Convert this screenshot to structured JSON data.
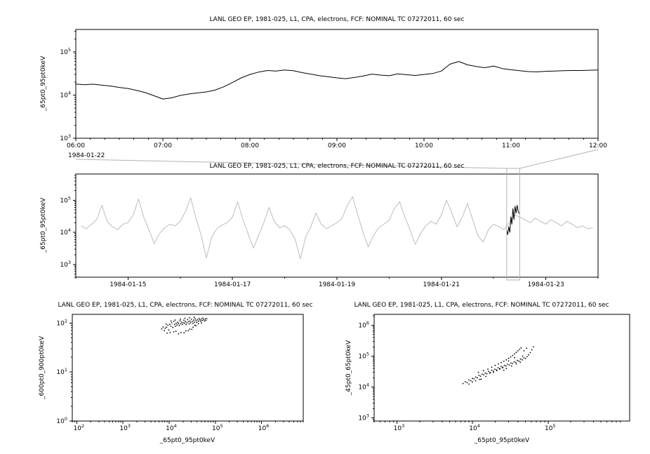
{
  "window": {
    "background": "#ffffff"
  },
  "colors": {
    "axis": "#000000",
    "series": "#000000",
    "context_line": "#bdbdbd",
    "highlight": "#000000",
    "selection": "#b3b3b3"
  },
  "chart_data": [
    {
      "type": "line",
      "title": "LANL GEO EP, 1981-025, L1, CPA, electrons, FCF: NOMINAL TC 07272011, 60 sec",
      "ylabel": "_65pt0_95pt0keV",
      "x_context_label": "1984-01-22",
      "x_unit": "time of day (hours)",
      "xlim": [
        6,
        12
      ],
      "ylim": [
        1000,
        330000
      ],
      "y_scale": "log",
      "x_minor_step": 0.1666667,
      "x_ticks": [
        {
          "v": 6,
          "label": "06:00"
        },
        {
          "v": 7,
          "label": "07:00"
        },
        {
          "v": 8,
          "label": "08:00"
        },
        {
          "v": 9,
          "label": "09:00"
        },
        {
          "v": 10,
          "label": "10:00"
        },
        {
          "v": 11,
          "label": "11:00"
        },
        {
          "v": 12,
          "label": "12:00"
        }
      ],
      "y_decades": [
        3,
        4,
        5
      ],
      "series": [
        {
          "name": "flux-65-95keV",
          "color": "#000000",
          "x": {
            "start": 6.0,
            "step": 0.1
          },
          "y": [
            18000,
            17400,
            17800,
            16900,
            16200,
            15000,
            14200,
            12800,
            11400,
            9600,
            8100,
            8600,
            9800,
            10600,
            11200,
            11800,
            13000,
            15500,
            19500,
            25000,
            30000,
            34000,
            37000,
            36000,
            38000,
            36500,
            33000,
            30500,
            28000,
            26500,
            25000,
            24000,
            25500,
            27500,
            30500,
            29000,
            28000,
            31000,
            29500,
            28500,
            30000,
            31500,
            36000,
            52000,
            60000,
            50000,
            46000,
            43000,
            47000,
            41000,
            38500,
            36500,
            35000,
            34500,
            35500,
            36000,
            36500,
            37000,
            37000,
            37500,
            38000
          ]
        }
      ]
    },
    {
      "type": "line",
      "title": "LANL GEO EP, 1981-025, L1, CPA, electrons, FCF: NOMINAL TC 07272011, 60 sec",
      "ylabel": "_65pt0_95pt0keV",
      "x_unit": "day of 1984-01",
      "xlim": [
        14,
        24
      ],
      "ylim": [
        400,
        660000
      ],
      "y_scale": "log",
      "x_minor_step": 1,
      "x_ticks": [
        {
          "v": 15,
          "label": "1984-01-15"
        },
        {
          "v": 17,
          "label": "1984-01-17"
        },
        {
          "v": 19,
          "label": "1984-01-19"
        },
        {
          "v": 21,
          "label": "1984-01-21"
        },
        {
          "v": 23,
          "label": "1984-01-23"
        }
      ],
      "y_decades": [
        3,
        4,
        5
      ],
      "selection": {
        "x0": 22.25,
        "x1": 22.5
      },
      "series": [
        {
          "name": "context-flux-65-95keV",
          "color": "#bdbdbd",
          "x": {
            "start": 14.1,
            "step": 0.1
          },
          "y": [
            16000,
            13000,
            18000,
            25000,
            70000,
            22000,
            15000,
            12000,
            18000,
            20000,
            35000,
            110000,
            30000,
            12000,
            4500,
            9000,
            14000,
            18000,
            16000,
            22000,
            45000,
            120000,
            28000,
            8000,
            1600,
            7000,
            13000,
            17000,
            20000,
            30000,
            90000,
            25000,
            9000,
            3200,
            8000,
            20000,
            60000,
            22000,
            14000,
            16000,
            12000,
            6000,
            1500,
            7000,
            15000,
            40000,
            18000,
            13000,
            16000,
            20000,
            28000,
            70000,
            130000,
            35000,
            10000,
            3500,
            8000,
            14000,
            18000,
            24000,
            55000,
            90000,
            30000,
            12000,
            4200,
            9000,
            16000,
            22000,
            18000,
            35000,
            100000,
            40000,
            15000,
            30000,
            80000,
            25000,
            8000,
            5000,
            12000,
            18000,
            15000,
            12000,
            20000,
            35000,
            30000,
            25000,
            20000,
            28000,
            22000,
            18000,
            25000,
            20000,
            16000,
            22000,
            18000,
            14000,
            16000,
            13000,
            14000
          ]
        },
        {
          "name": "highlight-zoom-interval",
          "color": "#000000",
          "x": {
            "start": 22.25,
            "step": 0.02
          },
          "y": [
            12000,
            8500,
            15000,
            10000,
            30000,
            18000,
            55000,
            25000,
            65000,
            40000,
            70000,
            45000,
            38000
          ]
        }
      ]
    },
    {
      "type": "scatter",
      "title": "LANL GEO EP, 1981-025, L1, CPA, electrons, FCF: NOMINAL TC 07272011, 60 sec",
      "xlabel": "_65pt0_95pt0keV",
      "ylabel": "_600pt0_900pt0keV",
      "x_log": true,
      "xlim": [
        80,
        8000000
      ],
      "ylim": [
        1,
        150
      ],
      "x_decades": [
        2,
        3,
        4,
        5,
        6
      ],
      "y_decades": [
        0,
        1,
        2
      ],
      "points": [
        [
          8200,
          78
        ],
        [
          8800,
          82
        ],
        [
          9400,
          90
        ],
        [
          9800,
          72
        ],
        [
          10300,
          94
        ],
        [
          10900,
          86
        ],
        [
          11400,
          101
        ],
        [
          12000,
          81
        ],
        [
          12600,
          108
        ],
        [
          13100,
          94
        ],
        [
          13700,
          86
        ],
        [
          14200,
          99
        ],
        [
          14800,
          91
        ],
        [
          15400,
          104
        ],
        [
          16000,
          97
        ],
        [
          16600,
          89
        ],
        [
          17200,
          111
        ],
        [
          17900,
          96
        ],
        [
          18600,
          104
        ],
        [
          19300,
          93
        ],
        [
          20000,
          101
        ],
        [
          20800,
          114
        ],
        [
          21600,
          99
        ],
        [
          22400,
          107
        ],
        [
          23300,
          93
        ],
        [
          24200,
          101
        ],
        [
          25100,
          117
        ],
        [
          26100,
          106
        ],
        [
          27100,
          96
        ],
        [
          28200,
          109
        ],
        [
          29300,
          101
        ],
        [
          30400,
          119
        ],
        [
          31600,
          107
        ],
        [
          32800,
          98
        ],
        [
          34100,
          114
        ],
        [
          35400,
          104
        ],
        [
          36800,
          121
        ],
        [
          38200,
          111
        ],
        [
          39700,
          102
        ],
        [
          41200,
          117
        ],
        [
          42800,
          109
        ],
        [
          44500,
          124
        ],
        [
          46200,
          116
        ],
        [
          48000,
          109
        ],
        [
          49900,
          121
        ],
        [
          51800,
          113
        ],
        [
          53800,
          126
        ],
        [
          55900,
          117
        ],
        [
          58100,
          110
        ],
        [
          60400,
          121
        ],
        [
          62700,
          113
        ],
        [
          65200,
          123
        ],
        [
          9000,
          62
        ],
        [
          12500,
          66
        ],
        [
          16000,
          60
        ],
        [
          21000,
          63
        ],
        [
          26000,
          70
        ],
        [
          31000,
          74
        ],
        [
          6900,
          76
        ],
        [
          7400,
          83
        ],
        [
          7900,
          70
        ],
        [
          10500,
          64
        ],
        [
          14000,
          68
        ],
        [
          18000,
          64
        ],
        [
          23000,
          69
        ],
        [
          28000,
          75
        ],
        [
          36000,
          90
        ],
        [
          43000,
          96
        ],
        [
          50000,
          100
        ],
        [
          33000,
          82
        ],
        [
          38000,
          88
        ],
        [
          8600,
          95
        ],
        [
          11000,
          110
        ],
        [
          13500,
          115
        ],
        [
          17500,
          120
        ],
        [
          22000,
          125
        ],
        [
          27500,
          128
        ],
        [
          35000,
          130
        ]
      ]
    },
    {
      "type": "scatter",
      "title": "LANL GEO EP, 1981-025, L1, CPA, electrons, FCF: NOMINAL TC 07272011, 60 sec",
      "xlabel": "_65pt0_95pt0keV",
      "ylabel": "_45pt0_65pt0keV",
      "x_log": true,
      "xlim": [
        500,
        1200000
      ],
      "ylim": [
        800,
        2240000
      ],
      "x_decades": [
        3,
        4,
        5
      ],
      "y_decades": [
        3,
        4,
        5,
        6
      ],
      "points": [
        [
          7500,
          13000
        ],
        [
          8000,
          15000
        ],
        [
          8500,
          14000
        ],
        [
          9000,
          17000
        ],
        [
          9500,
          16000
        ],
        [
          10000,
          19000
        ],
        [
          10500,
          18500
        ],
        [
          11000,
          21000
        ],
        [
          11600,
          20000
        ],
        [
          12200,
          24000
        ],
        [
          12800,
          22500
        ],
        [
          13400,
          26000
        ],
        [
          14100,
          25000
        ],
        [
          14800,
          28500
        ],
        [
          15500,
          27000
        ],
        [
          16300,
          32000
        ],
        [
          17100,
          30000
        ],
        [
          18000,
          35000
        ],
        [
          18900,
          33000
        ],
        [
          19800,
          38000
        ],
        [
          20800,
          36000
        ],
        [
          21800,
          42000
        ],
        [
          22900,
          40000
        ],
        [
          24000,
          46000
        ],
        [
          25200,
          44000
        ],
        [
          26500,
          50000
        ],
        [
          27800,
          48000
        ],
        [
          29200,
          55000
        ],
        [
          30700,
          52000
        ],
        [
          32200,
          60000
        ],
        [
          33800,
          58000
        ],
        [
          35500,
          66000
        ],
        [
          37300,
          63000
        ],
        [
          39200,
          72000
        ],
        [
          41200,
          69000
        ],
        [
          43300,
          80000
        ],
        [
          45500,
          76000
        ],
        [
          47800,
          88000
        ],
        [
          50200,
          84000
        ],
        [
          52700,
          96000
        ],
        [
          55300,
          110000
        ],
        [
          58100,
          130000
        ],
        [
          61000,
          160000
        ],
        [
          64000,
          200000
        ],
        [
          9000,
          12500
        ],
        [
          11000,
          16000
        ],
        [
          13000,
          18000
        ],
        [
          15000,
          22000
        ],
        [
          17000,
          28000
        ],
        [
          19000,
          30000
        ],
        [
          21000,
          34000
        ],
        [
          23000,
          38000
        ],
        [
          25000,
          42000
        ],
        [
          12000,
          30000
        ],
        [
          14000,
          34000
        ],
        [
          16000,
          38000
        ],
        [
          18000,
          44000
        ],
        [
          20000,
          50000
        ],
        [
          22000,
          56000
        ],
        [
          24000,
          62000
        ],
        [
          26000,
          68000
        ],
        [
          28000,
          76000
        ],
        [
          30000,
          85000
        ],
        [
          32000,
          95000
        ],
        [
          34000,
          105000
        ],
        [
          36000,
          118000
        ],
        [
          38000,
          132000
        ],
        [
          40000,
          148000
        ],
        [
          42000,
          165000
        ],
        [
          44000,
          185000
        ],
        [
          28000,
          40000
        ],
        [
          33000,
          48000
        ],
        [
          38000,
          56000
        ],
        [
          43000,
          64000
        ],
        [
          10000,
          14500
        ],
        [
          12500,
          17500
        ],
        [
          36000,
          90000
        ],
        [
          30000,
          70000
        ],
        [
          26000,
          35000
        ],
        [
          48000,
          150000
        ],
        [
          52000,
          180000
        ],
        [
          46000,
          100000
        ]
      ]
    }
  ]
}
